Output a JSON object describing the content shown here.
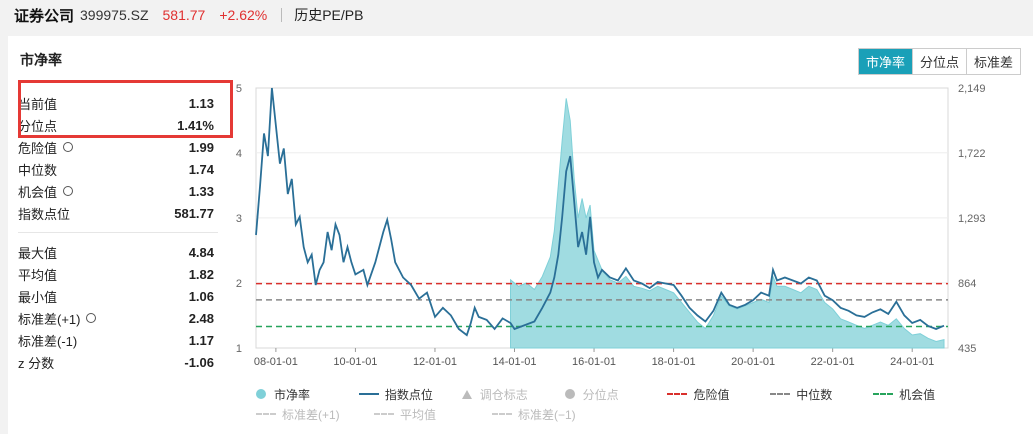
{
  "header": {
    "name": "证券公司",
    "code": "399975.SZ",
    "price": "581.77",
    "change": "+2.62%",
    "tab": "历史PE/PB"
  },
  "panel": {
    "title": "市净率",
    "toggles": [
      "市净率",
      "分位点",
      "标准差"
    ],
    "active_toggle": "市净率"
  },
  "stats": {
    "group1": [
      {
        "label": "当前值",
        "value": "1.13"
      },
      {
        "label": "分位点",
        "value": "1.41%"
      },
      {
        "label": "危险值",
        "value": "1.99",
        "gear": true
      },
      {
        "label": "中位数",
        "value": "1.74"
      },
      {
        "label": "机会值",
        "value": "1.33",
        "gear": true
      },
      {
        "label": "指数点位",
        "value": "581.77"
      }
    ],
    "group2": [
      {
        "label": "最大值",
        "value": "4.84"
      },
      {
        "label": "平均值",
        "value": "1.82"
      },
      {
        "label": "最小值",
        "value": "1.06"
      },
      {
        "label": "标准差(+1)",
        "value": "2.48",
        "gear": true
      },
      {
        "label": "标准差(-1)",
        "value": "1.17"
      },
      {
        "label": "z 分数",
        "value": "-1.06"
      }
    ]
  },
  "legend": {
    "row1": [
      {
        "label": "市净率",
        "kind": "dot",
        "color": "#7fd0d8"
      },
      {
        "label": "指数点位",
        "kind": "line",
        "color": "#2a6f97"
      },
      {
        "label": "调仓标志",
        "kind": "tri",
        "color": "#bbbbbb",
        "dim": true
      },
      {
        "label": "分位点",
        "kind": "dot",
        "color": "#bbbbbb",
        "dim": true
      },
      {
        "label": "危险值",
        "kind": "dash",
        "color": "#d9302c"
      },
      {
        "label": "中位数",
        "kind": "dash",
        "color": "#888888"
      },
      {
        "label": "机会值",
        "kind": "dash",
        "color": "#27a45c"
      }
    ],
    "row2": [
      {
        "label": "标准差(+1)",
        "kind": "dash",
        "color": "#cccccc",
        "dim": true
      },
      {
        "label": "平均值",
        "kind": "dash",
        "color": "#cccccc",
        "dim": true
      },
      {
        "label": "标准差(−1)",
        "kind": "dash",
        "color": "#cccccc",
        "dim": true
      }
    ]
  },
  "chart_data": {
    "type": "line",
    "x_ticks": [
      "08-01-01",
      "10-01-01",
      "12-01-01",
      "14-01-01",
      "16-01-01",
      "18-01-01",
      "20-01-01",
      "22-01-01",
      "24-01-01"
    ],
    "y_left_ticks": [
      "1",
      "2",
      "3",
      "4",
      "5"
    ],
    "y_right_ticks": [
      "435",
      "864",
      "1,293",
      "1,722",
      "2,149"
    ],
    "y_left_range": [
      1,
      5
    ],
    "y_right_range": [
      435,
      2149
    ],
    "x_range": [
      2007.5,
      2024.9
    ],
    "reference_lines": {
      "danger": 1.99,
      "median": 1.74,
      "opportunity": 1.33
    },
    "series": [
      {
        "name": "指数点位",
        "color": "#2a6f97",
        "points": [
          [
            2007.5,
            1180
          ],
          [
            2007.6,
            1500
          ],
          [
            2007.7,
            1850
          ],
          [
            2007.8,
            1700
          ],
          [
            2007.9,
            2149
          ],
          [
            2008.0,
            1900
          ],
          [
            2008.1,
            1650
          ],
          [
            2008.2,
            1750
          ],
          [
            2008.3,
            1450
          ],
          [
            2008.4,
            1550
          ],
          [
            2008.5,
            1250
          ],
          [
            2008.6,
            1300
          ],
          [
            2008.7,
            1100
          ],
          [
            2008.8,
            1000
          ],
          [
            2008.9,
            1050
          ],
          [
            2009.0,
            850
          ],
          [
            2009.1,
            950
          ],
          [
            2009.2,
            1000
          ],
          [
            2009.3,
            1200
          ],
          [
            2009.4,
            1080
          ],
          [
            2009.5,
            1250
          ],
          [
            2009.6,
            1180
          ],
          [
            2009.7,
            1000
          ],
          [
            2009.8,
            1100
          ],
          [
            2009.9,
            1000
          ],
          [
            2010.0,
            920
          ],
          [
            2010.2,
            950
          ],
          [
            2010.3,
            850
          ],
          [
            2010.5,
            1000
          ],
          [
            2010.7,
            1200
          ],
          [
            2010.8,
            1280
          ],
          [
            2010.9,
            1150
          ],
          [
            2011.0,
            1000
          ],
          [
            2011.2,
            900
          ],
          [
            2011.4,
            850
          ],
          [
            2011.6,
            760
          ],
          [
            2011.8,
            800
          ],
          [
            2012.0,
            640
          ],
          [
            2012.2,
            700
          ],
          [
            2012.4,
            650
          ],
          [
            2012.6,
            560
          ],
          [
            2012.8,
            520
          ],
          [
            2012.9,
            600
          ],
          [
            2013.0,
            700
          ],
          [
            2013.1,
            640
          ],
          [
            2013.3,
            620
          ],
          [
            2013.5,
            560
          ],
          [
            2013.7,
            630
          ],
          [
            2013.9,
            600
          ],
          [
            2014.0,
            560
          ],
          [
            2014.2,
            580
          ],
          [
            2014.5,
            610
          ],
          [
            2014.7,
            700
          ],
          [
            2014.9,
            800
          ],
          [
            2015.0,
            900
          ],
          [
            2015.1,
            1050
          ],
          [
            2015.2,
            1300
          ],
          [
            2015.3,
            1600
          ],
          [
            2015.4,
            1700
          ],
          [
            2015.5,
            1400
          ],
          [
            2015.6,
            1100
          ],
          [
            2015.7,
            1200
          ],
          [
            2015.8,
            1050
          ],
          [
            2015.9,
            1300
          ],
          [
            2016.0,
            1000
          ],
          [
            2016.1,
            900
          ],
          [
            2016.2,
            950
          ],
          [
            2016.4,
            900
          ],
          [
            2016.6,
            880
          ],
          [
            2016.8,
            960
          ],
          [
            2017.0,
            880
          ],
          [
            2017.2,
            860
          ],
          [
            2017.4,
            830
          ],
          [
            2017.6,
            870
          ],
          [
            2017.8,
            860
          ],
          [
            2018.0,
            850
          ],
          [
            2018.2,
            780
          ],
          [
            2018.4,
            700
          ],
          [
            2018.6,
            650
          ],
          [
            2018.8,
            610
          ],
          [
            2019.0,
            680
          ],
          [
            2019.2,
            800
          ],
          [
            2019.4,
            720
          ],
          [
            2019.6,
            700
          ],
          [
            2019.8,
            720
          ],
          [
            2020.0,
            750
          ],
          [
            2020.2,
            800
          ],
          [
            2020.4,
            780
          ],
          [
            2020.5,
            950
          ],
          [
            2020.6,
            880
          ],
          [
            2020.8,
            900
          ],
          [
            2021.0,
            880
          ],
          [
            2021.2,
            860
          ],
          [
            2021.4,
            900
          ],
          [
            2021.6,
            880
          ],
          [
            2021.8,
            780
          ],
          [
            2022.0,
            750
          ],
          [
            2022.2,
            700
          ],
          [
            2022.4,
            680
          ],
          [
            2022.6,
            650
          ],
          [
            2022.8,
            640
          ],
          [
            2023.0,
            670
          ],
          [
            2023.2,
            690
          ],
          [
            2023.4,
            660
          ],
          [
            2023.6,
            740
          ],
          [
            2023.8,
            650
          ],
          [
            2024.0,
            600
          ],
          [
            2024.2,
            620
          ],
          [
            2024.4,
            580
          ],
          [
            2024.6,
            560
          ],
          [
            2024.8,
            582
          ]
        ]
      },
      {
        "name": "市净率",
        "color": "#7fd0d8",
        "points": [
          [
            2013.9,
            2.05
          ],
          [
            2014.1,
            1.95
          ],
          [
            2014.3,
            2.0
          ],
          [
            2014.5,
            1.9
          ],
          [
            2014.7,
            2.1
          ],
          [
            2014.9,
            2.4
          ],
          [
            2015.0,
            2.8
          ],
          [
            2015.1,
            3.5
          ],
          [
            2015.2,
            4.2
          ],
          [
            2015.3,
            4.84
          ],
          [
            2015.4,
            4.5
          ],
          [
            2015.5,
            3.6
          ],
          [
            2015.6,
            3.0
          ],
          [
            2015.7,
            3.3
          ],
          [
            2015.8,
            3.0
          ],
          [
            2015.9,
            3.2
          ],
          [
            2016.0,
            2.5
          ],
          [
            2016.2,
            2.2
          ],
          [
            2016.4,
            2.05
          ],
          [
            2016.6,
            2.0
          ],
          [
            2016.8,
            2.1
          ],
          [
            2017.0,
            1.95
          ],
          [
            2017.2,
            1.92
          ],
          [
            2017.4,
            1.88
          ],
          [
            2017.6,
            1.95
          ],
          [
            2017.8,
            1.9
          ],
          [
            2018.0,
            1.85
          ],
          [
            2018.2,
            1.7
          ],
          [
            2018.4,
            1.55
          ],
          [
            2018.6,
            1.4
          ],
          [
            2018.8,
            1.3
          ],
          [
            2019.0,
            1.5
          ],
          [
            2019.2,
            1.8
          ],
          [
            2019.4,
            1.65
          ],
          [
            2019.6,
            1.6
          ],
          [
            2019.8,
            1.65
          ],
          [
            2020.0,
            1.7
          ],
          [
            2020.2,
            1.75
          ],
          [
            2020.4,
            1.7
          ],
          [
            2020.5,
            2.1
          ],
          [
            2020.6,
            1.95
          ],
          [
            2020.8,
            1.95
          ],
          [
            2021.0,
            1.9
          ],
          [
            2021.2,
            1.85
          ],
          [
            2021.4,
            1.95
          ],
          [
            2021.6,
            1.9
          ],
          [
            2021.8,
            1.7
          ],
          [
            2022.0,
            1.6
          ],
          [
            2022.2,
            1.45
          ],
          [
            2022.4,
            1.4
          ],
          [
            2022.6,
            1.35
          ],
          [
            2022.8,
            1.3
          ],
          [
            2023.0,
            1.35
          ],
          [
            2023.2,
            1.4
          ],
          [
            2023.4,
            1.35
          ],
          [
            2023.6,
            1.45
          ],
          [
            2023.8,
            1.3
          ],
          [
            2024.0,
            1.2
          ],
          [
            2024.2,
            1.22
          ],
          [
            2024.4,
            1.15
          ],
          [
            2024.6,
            1.1
          ],
          [
            2024.8,
            1.13
          ]
        ]
      }
    ]
  }
}
